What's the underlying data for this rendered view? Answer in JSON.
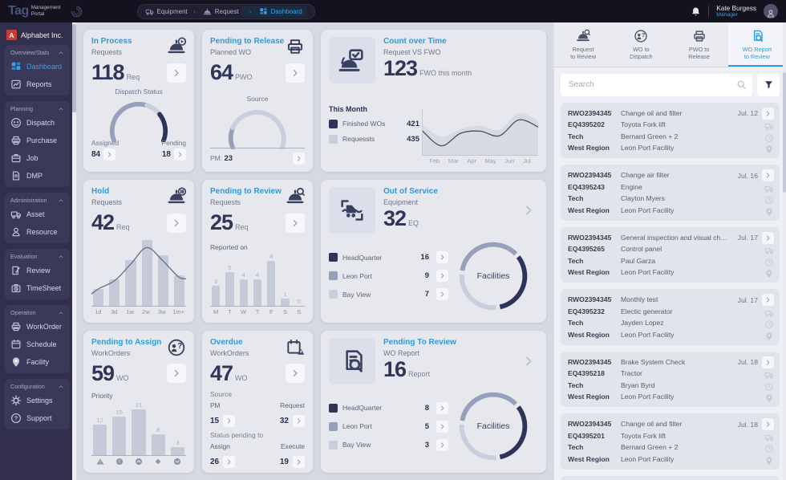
{
  "colors": {
    "accent": "#2d9cdb",
    "dark": "#2e3457",
    "medium": "#97a0ba",
    "light": "#c9cede",
    "curve": "#6b7391",
    "bar": "#c5cad8",
    "area_fill": "#d7dae3",
    "area_line": "#434a6b",
    "axis": "#c3c7d4"
  },
  "topbar": {
    "logo_main": "Tag",
    "logo_sub1": "Management",
    "logo_sub2": "Portal",
    "breadcrumb": [
      {
        "icon": "truck",
        "label": "Equipment"
      },
      {
        "icon": "cloche",
        "label": "Request"
      },
      {
        "icon": "grid",
        "label": "Dashboard",
        "active": true
      }
    ],
    "user": {
      "name": "Kate Burgess",
      "role": "Manager"
    }
  },
  "sidebar": {
    "company_initial": "A",
    "company": "Alphabet Inc.",
    "sections": [
      {
        "title": "Overview/Stats",
        "items": [
          {
            "icon": "grid",
            "label": "Dashboard",
            "active": true
          },
          {
            "icon": "chart",
            "label": "Reports"
          }
        ]
      },
      {
        "title": "Planning",
        "items": [
          {
            "icon": "people",
            "label": "Dispatch"
          },
          {
            "icon": "printer",
            "label": "Purchase"
          },
          {
            "icon": "briefcase",
            "label": "Job"
          },
          {
            "icon": "doc",
            "label": "DMP"
          }
        ]
      },
      {
        "title": "Administration",
        "items": [
          {
            "icon": "truck",
            "label": "Asset"
          },
          {
            "icon": "person",
            "label": "Resource"
          }
        ]
      },
      {
        "title": "Evaluation",
        "items": [
          {
            "icon": "review",
            "label": "Review"
          },
          {
            "icon": "clock-case",
            "label": "TimeSheet"
          }
        ]
      },
      {
        "title": "Operation",
        "items": [
          {
            "icon": "printer",
            "label": "WorkOrder"
          },
          {
            "icon": "calendar",
            "label": "Schedule"
          },
          {
            "icon": "pin",
            "label": "Facility"
          }
        ]
      },
      {
        "title": "Configuration",
        "items": [
          {
            "icon": "gear",
            "label": "Settings"
          },
          {
            "icon": "question",
            "label": "Support"
          }
        ]
      }
    ]
  },
  "cards": {
    "in_process": {
      "title": "In Process",
      "subtitle": "Requests",
      "value": "118",
      "unit": "Req",
      "badge_icon": "bell-play",
      "gauge_label": "Dispatch Status",
      "left_label": "Assigned",
      "left_value": "84",
      "right_label": "Pending",
      "right_value": "18",
      "chart": {
        "type": "gauge",
        "start": -112,
        "end": 112,
        "segments": [
          {
            "pct": 0.58,
            "color": "medium"
          },
          {
            "pct": 0.15,
            "color": "light"
          },
          {
            "pct": 0.27,
            "color": "dark"
          }
        ]
      }
    },
    "pending_to_release": {
      "title": "Pending to Release",
      "subtitle": "Planned WO",
      "value": "64",
      "unit": "PWO",
      "badge_icon": "printer",
      "gauge_label": "Source",
      "bottom_label": "PM:",
      "bottom_value": "23",
      "chart": {
        "type": "gauge",
        "start": -112,
        "end": 112,
        "segments": [
          {
            "pct": 0.2,
            "color": "medium"
          },
          {
            "pct": 0.8,
            "color": "light"
          }
        ]
      }
    },
    "count_over_time": {
      "title": "Count over Time",
      "subtitle": "Request VS FWO",
      "value": "123",
      "unit": "FWO this month",
      "tile_icon": "bell-doc",
      "legend_title": "This Month",
      "legend": [
        {
          "swatch": "dark",
          "label": "Finished WOs",
          "value": "421"
        },
        {
          "swatch": "light",
          "label": "Requessts",
          "value": "435"
        }
      ],
      "chart": {
        "type": "area",
        "x": [
          "Feb",
          "Mar",
          "Apr",
          "May",
          "Jun",
          "Jul"
        ],
        "area": [
          72,
          42,
          60,
          68,
          58,
          98,
          80
        ],
        "line": [
          57,
          20,
          50,
          55,
          44,
          82,
          65
        ]
      }
    },
    "hold": {
      "title": "Hold",
      "subtitle": "Requests",
      "value": "42",
      "unit": "Req",
      "badge_icon": "bell-pause",
      "chart": {
        "type": "bars",
        "labels": [
          "1d",
          "3d",
          "1w",
          "2w",
          "3w",
          "1m+"
        ],
        "values": [
          15,
          24,
          42,
          60,
          46,
          28
        ],
        "curve": true
      }
    },
    "pending_to_review": {
      "title": "Pending to Review",
      "subtitle": "Requests",
      "value": "25",
      "unit": "Req",
      "badge_icon": "bell-search",
      "chart_label": "Reported on",
      "chart": {
        "type": "bars",
        "labels": [
          "M",
          "T",
          "W",
          "T",
          "F",
          "S",
          "S"
        ],
        "values": [
          3,
          5,
          4,
          4,
          8,
          1,
          0
        ],
        "show_values": true
      }
    },
    "out_of_service": {
      "title": "Out of Service",
      "subtitle": "Equipment",
      "value": "32",
      "unit": "EQ",
      "tile_icon": "forklift",
      "donut_label": "Facilities",
      "legend": [
        {
          "swatch": "dark",
          "label": "HeadQuarter",
          "value": "16"
        },
        {
          "swatch": "medium",
          "label": "Leon Port",
          "value": "9"
        },
        {
          "swatch": "light",
          "label": "Bay View",
          "value": "7"
        }
      ],
      "ring": {
        "segments": [
          {
            "pct": 0.37,
            "color": "medium"
          },
          {
            "pct": 0.34,
            "color": "dark"
          },
          {
            "pct": 0.29,
            "color": "light"
          }
        ]
      }
    },
    "pending_to_assign": {
      "title": "Pending to Assign",
      "subtitle": "WorkOrders",
      "value": "59",
      "unit": "WO",
      "badge_icon": "person-question",
      "chart_label": "Priority",
      "chart": {
        "type": "bars",
        "values": [
          12,
          15,
          21,
          8,
          3
        ],
        "show_values": true,
        "icons": [
          "warning",
          "exclaim",
          "arrow-up",
          "diamond",
          "arrow-down"
        ]
      }
    },
    "overdue": {
      "title": "Overdue",
      "subtitle": "WorkOrders",
      "value": "47",
      "unit": "WO",
      "badge_icon": "calendar-warning",
      "source": {
        "label": "Source",
        "left_label": "PM",
        "right_label": "Request",
        "left_value": "15",
        "right_value": "32"
      },
      "status": {
        "label": "Status pending to",
        "left_label": "Assign",
        "right_label": "Execute",
        "left_value": "26",
        "right_value": "19"
      }
    },
    "pending_to_review_wo": {
      "title": "Pending To Review",
      "subtitle": "WO Report",
      "value": "16",
      "unit": "Report",
      "tile_icon": "report-search",
      "donut_label": "Facilities",
      "legend": [
        {
          "swatch": "dark",
          "label": "HeadQuarter",
          "value": "8"
        },
        {
          "swatch": "medium",
          "label": "Leon Port",
          "value": "5"
        },
        {
          "swatch": "light",
          "label": "Bay View",
          "value": "3"
        }
      ],
      "ring": {
        "segments": [
          {
            "pct": 0.37,
            "color": "medium"
          },
          {
            "pct": 0.34,
            "color": "dark"
          },
          {
            "pct": 0.29,
            "color": "light"
          }
        ]
      }
    }
  },
  "right_panel": {
    "tabs": [
      {
        "icon": "bell-search",
        "label1": "Request",
        "label2": "to Review"
      },
      {
        "icon": "person-question",
        "label1": "WO to",
        "label2": "Dispatch"
      },
      {
        "icon": "printer",
        "label1": "PWO to",
        "label2": "Release"
      },
      {
        "icon": "report-search",
        "label1": "WO Report",
        "label2": "to Review",
        "active": true
      }
    ],
    "search_placeholder": "Search",
    "items": [
      {
        "rwo": "RWO2394345",
        "title": "Change oil and filter",
        "date": "Jul. 12",
        "eq": "EQ4395202",
        "equipment": "Toyota Fork lift",
        "tech_label": "Tech",
        "tech": "Bernard Green + 2",
        "region_label": "West Region",
        "facility": "Leon Port Facility"
      },
      {
        "rwo": "RWO2394345",
        "title": "Change air filter",
        "date": "Jul. 16",
        "eq": "EQ4395243",
        "equipment": "Engine",
        "tech_label": "Tech",
        "tech": "Clayton Myers",
        "region_label": "West Region",
        "facility": "Leon Port Facility"
      },
      {
        "rwo": "RWO2394345",
        "title": "General inspection and visual check",
        "date": "Jul. 17",
        "eq": "EQ4395265",
        "equipment": "Control panel",
        "tech_label": "Tech",
        "tech": "Paul Garza",
        "region_label": "West Region",
        "facility": "Leon Port Facility"
      },
      {
        "rwo": "RWO2394345",
        "title": "Monthly test",
        "date": "Jul. 17",
        "eq": "EQ4395232",
        "equipment": "Electic generator",
        "tech_label": "Tech",
        "tech": "Jayden Lopez",
        "region_label": "West Region",
        "facility": "Leon Port Facility"
      },
      {
        "rwo": "RWO2394345",
        "title": "Brake System Check",
        "date": "Jul. 18",
        "eq": "EQ4395218",
        "equipment": "Tractor",
        "tech_label": "Tech",
        "tech": "Bryan Byrd",
        "region_label": "West Region",
        "facility": "Leon Port Facility"
      },
      {
        "rwo": "RWO2394345",
        "title": "Change oil and filter",
        "date": "Jul. 18",
        "eq": "EQ4395201",
        "equipment": "Toyota Fork lift",
        "tech_label": "Tech",
        "tech": "Bernard Green + 2",
        "region_label": "West Region",
        "facility": "Leon Port Facility"
      }
    ]
  }
}
